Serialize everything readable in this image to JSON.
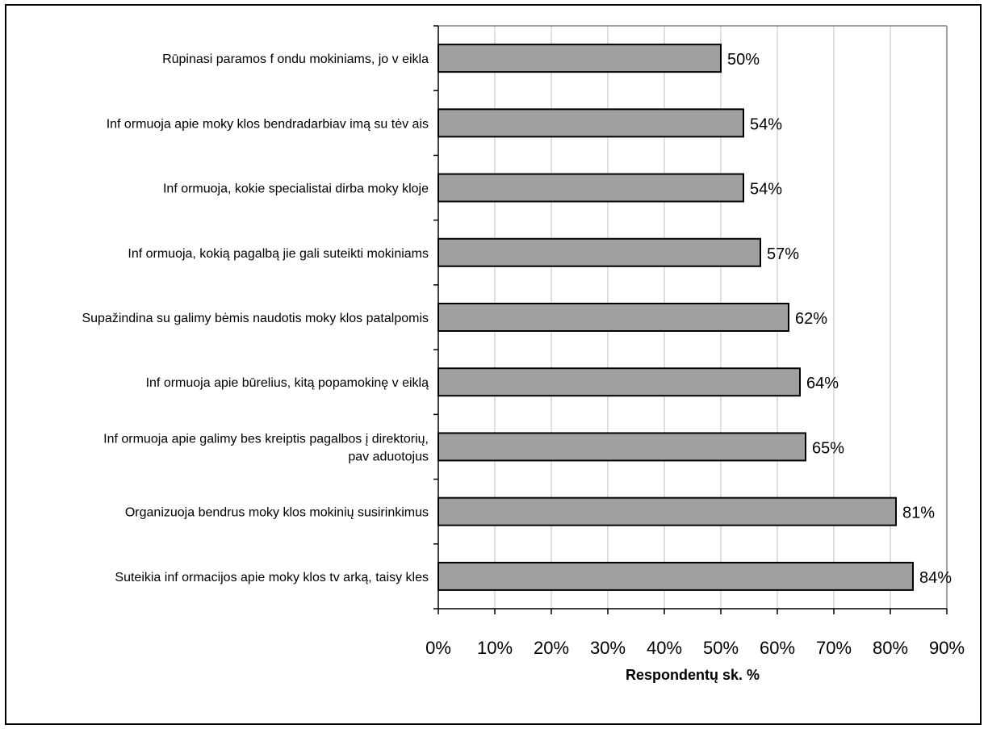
{
  "chart_data": {
    "type": "bar",
    "orientation": "horizontal",
    "categories": [
      "Rūpinasi paramos f ondu mokiniams, jo v eikla",
      "Inf ormuoja apie moky klos bendradarbiav imą su tėv ais",
      "Inf ormuoja, kokie specialistai dirba moky kloje",
      "Inf ormuoja, kokią pagalbą jie gali suteikti mokiniams",
      "Supažindina su galimy bėmis naudotis moky klos patalpomis",
      "Inf ormuoja apie būrelius, kitą popamokinę v eiklą",
      [
        "Inf ormuoja apie galimy bes kreiptis pagalbos į direktorių,",
        "pav aduotojus"
      ],
      "Organizuoja bendrus moky klos mokinių susirinkimus",
      "Suteikia inf ormacijos apie moky klos tv arką, taisy kles"
    ],
    "values": [
      50,
      54,
      54,
      57,
      62,
      64,
      65,
      81,
      84
    ],
    "data_labels": [
      "50%",
      "54%",
      "54%",
      "57%",
      "62%",
      "64%",
      "65%",
      "81%",
      "84%"
    ],
    "xlim": [
      0,
      90
    ],
    "x_ticks": [
      "0%",
      "10%",
      "20%",
      "30%",
      "40%",
      "50%",
      "60%",
      "70%",
      "80%",
      "90%"
    ],
    "xlabel": "Respondentų sk. %",
    "ylabel": "",
    "title": "",
    "grid": "vertical",
    "legend": "none",
    "colors": {
      "bar": "#a0a0a0",
      "bar_stroke": "#000000",
      "grid": "#c0c0c0",
      "plot_border": "#808080",
      "axis": "#000000"
    }
  }
}
